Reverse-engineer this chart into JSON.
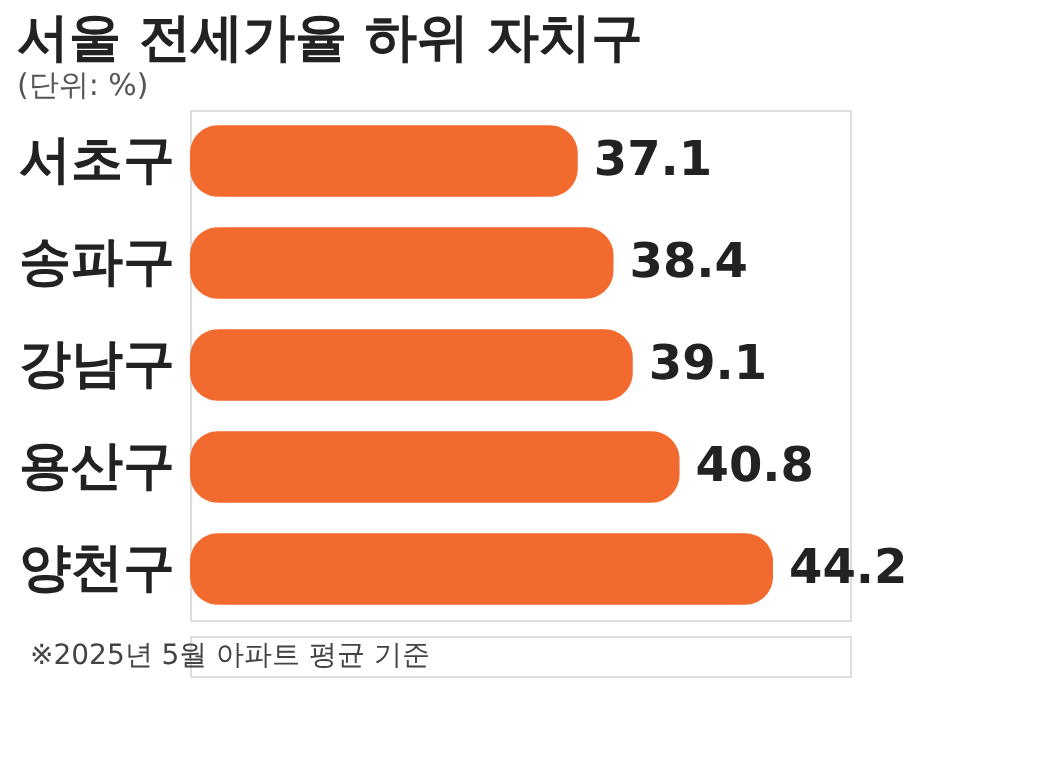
{
  "chart_data": {
    "type": "bar",
    "orientation": "horizontal",
    "title": "서울 전세가율 하위 자치구",
    "subtitle": "(단위: %)",
    "categories": [
      "서초구",
      "송파구",
      "강남구",
      "용산구",
      "양천구"
    ],
    "values": [
      37.1,
      38.4,
      39.1,
      40.8,
      44.2
    ],
    "color": "#f26a2e",
    "xlim": [
      23,
      47
    ],
    "data_labels": true,
    "tick_labels": "y",
    "annotations": [
      "※2025년 5월 아파트 평균 기준"
    ]
  }
}
